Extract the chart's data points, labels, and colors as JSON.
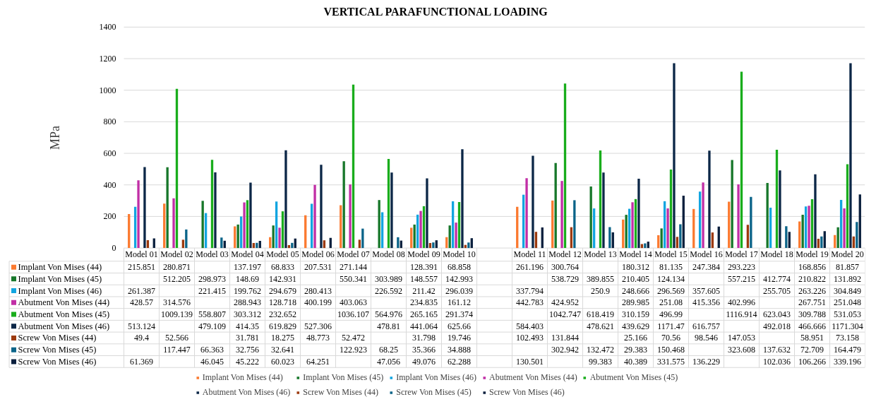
{
  "chart_data": {
    "type": "bar",
    "title": "VERTICAL PARAFUNCTIONAL LOADING",
    "ylabel": "MPa",
    "categories": [
      "Model 01",
      "Model 02",
      "Model 03",
      "Model 04",
      "Model 05",
      "Model 06",
      "Model 07",
      "Model 08",
      "Model 09",
      "Model 10",
      null,
      "Model 11",
      "Model 12",
      "Model 13",
      "Model 14",
      "Model 15",
      "Model 16",
      "Model 17",
      "Model 18",
      "Model 19",
      "Model 20"
    ],
    "ylim": [
      0,
      1400
    ],
    "yticks": [
      0,
      200,
      400,
      600,
      800,
      1000,
      1200,
      1400
    ],
    "grid": "y",
    "legend": "bottom",
    "data_labels": true,
    "series": [
      {
        "name": "Implant Von Mises (44)",
        "color": "#fb7a30",
        "values": [
          215.851,
          280.871,
          null,
          137.197,
          68.833,
          207.531,
          271.144,
          null,
          128.391,
          68.858,
          null,
          261.196,
          300.764,
          null,
          180.312,
          81.135,
          247.384,
          293.223,
          null,
          168.856,
          81.857
        ]
      },
      {
        "name": "Implant Von Mises (45)",
        "color": "#17772a",
        "values": [
          null,
          512.205,
          298.973,
          148.69,
          142.931,
          null,
          550.341,
          303.989,
          148.557,
          142.993,
          null,
          null,
          538.729,
          389.855,
          210.405,
          124.134,
          null,
          557.215,
          412.774,
          210.822,
          131.892
        ]
      },
      {
        "name": "Implant Von Mises (46)",
        "color": "#12a5e0",
        "values": [
          261.387,
          null,
          221.415,
          199.762,
          294.679,
          280.413,
          null,
          226.592,
          211.42,
          296.039,
          null,
          337.794,
          null,
          250.9,
          248.666,
          296.569,
          357.605,
          null,
          255.705,
          263.226,
          304.849
        ]
      },
      {
        "name": "Abutment Von Mises (44)",
        "color": "#c12ea6",
        "values": [
          428.57,
          314.576,
          null,
          288.943,
          128.718,
          400.199,
          403.063,
          null,
          234.835,
          161.12,
          null,
          442.783,
          424.952,
          null,
          289.985,
          251.08,
          415.356,
          402.996,
          null,
          267.751,
          251.048
        ]
      },
      {
        "name": "Abutment Von Mises (45)",
        "color": "#19ad1c",
        "values": [
          null,
          1009.139,
          558.807,
          303.312,
          232.652,
          null,
          1036.107,
          564.976,
          265.165,
          291.374,
          null,
          null,
          1042.747,
          618.419,
          310.159,
          496.99,
          null,
          1116.914,
          623.043,
          309.788,
          531.053
        ]
      },
      {
        "name": "Abutment Von Mises (46)",
        "color": "#0c2747",
        "values": [
          513.124,
          null,
          479.109,
          414.35,
          619.829,
          527.306,
          null,
          478.81,
          441.064,
          625.66,
          null,
          584.403,
          null,
          478.621,
          439.629,
          1171.47,
          616.757,
          null,
          492.018,
          466.666,
          1171.304
        ]
      },
      {
        "name": "Screw Von Mises (44)",
        "color": "#9c3a0e",
        "values": [
          49.4,
          52.566,
          null,
          31.781,
          18.275,
          48.773,
          52.472,
          null,
          31.798,
          19.746,
          null,
          102.493,
          131.844,
          null,
          25.166,
          70.56,
          98.546,
          147.053,
          null,
          58.951,
          73.158
        ]
      },
      {
        "name": "Screw Von Mises (45)",
        "color": "#0b6489",
        "values": [
          null,
          117.447,
          66.363,
          32.756,
          32.641,
          null,
          122.923,
          68.25,
          35.366,
          34.888,
          null,
          null,
          302.942,
          132.472,
          29.383,
          150.468,
          null,
          323.608,
          137.632,
          72.709,
          164.479
        ]
      },
      {
        "name": "Screw Von Mises (46)",
        "color": "#0a1f3d",
        "values": [
          61.369,
          null,
          46.045,
          45.222,
          60.023,
          64.251,
          null,
          47.056,
          49.076,
          62.288,
          null,
          130.501,
          null,
          99.383,
          40.389,
          331.575,
          136.229,
          null,
          102.036,
          106.266,
          339.196
        ]
      }
    ]
  }
}
